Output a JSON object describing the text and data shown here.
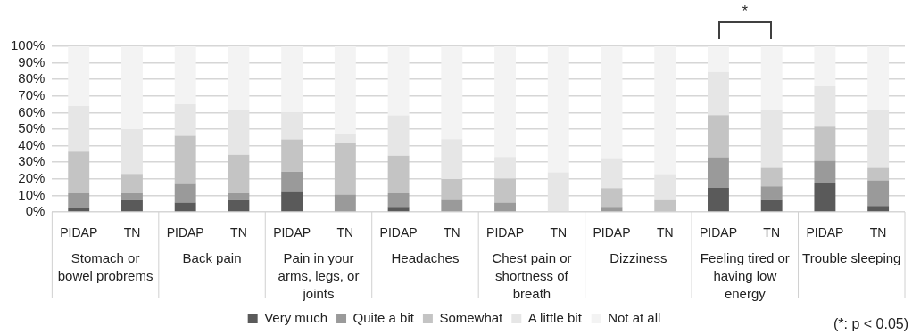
{
  "chart_data": {
    "type": "bar",
    "stacked": true,
    "categories": [
      "PIDAP",
      "TN",
      "PIDAP",
      "TN",
      "PIDAP",
      "TN",
      "PIDAP",
      "TN",
      "PIDAP",
      "TN",
      "PIDAP",
      "TN",
      "PIDAP",
      "TN",
      "PIDAP",
      "TN"
    ],
    "series": [
      {
        "name": "Very much",
        "color": "#5a5a5a",
        "values": [
          2.5,
          7.7,
          5.6,
          7.7,
          12.1,
          0,
          3.1,
          0,
          0,
          0,
          0,
          0,
          14.5,
          7.7,
          17.8,
          3.6
        ]
      },
      {
        "name": "Quite a bit",
        "color": "#9a9a9a",
        "values": [
          8.8,
          3.7,
          11.4,
          3.7,
          12.2,
          10.5,
          8.2,
          7.8,
          5.6,
          0,
          3.1,
          0,
          18.5,
          7.7,
          13.1,
          15.5
        ]
      },
      {
        "name": "Somewhat",
        "color": "#c4c4c4",
        "values": [
          25.1,
          11.6,
          29,
          23.1,
          19.5,
          31.3,
          22.7,
          12.1,
          14.5,
          0,
          11.3,
          7.7,
          25.5,
          11.2,
          20.6,
          7.5
        ]
      },
      {
        "name": "A little bit",
        "color": "#e6e6e6",
        "values": [
          27.6,
          27,
          19,
          26.9,
          16.2,
          5.4,
          24.3,
          24.1,
          13.1,
          23.9,
          18.1,
          15.2,
          26,
          35,
          24.8,
          35
        ]
      },
      {
        "name": "Not at all",
        "color": "#f3f3f3",
        "values": [
          36,
          50,
          35,
          38.6,
          40,
          52.8,
          41.7,
          56,
          66.8,
          76.1,
          67.5,
          77.1,
          15.5,
          38.4,
          23.7,
          38.4
        ]
      }
    ],
    "ylim": [
      0,
      100
    ],
    "yticks": [
      {
        "value": 0,
        "label": "0%"
      },
      {
        "value": 10,
        "label": "10%"
      },
      {
        "value": 20,
        "label": "20%"
      },
      {
        "value": 30,
        "label": "30%"
      },
      {
        "value": 40,
        "label": "40%"
      },
      {
        "value": 50,
        "label": "50%"
      },
      {
        "value": 60,
        "label": "60%"
      },
      {
        "value": 70,
        "label": "70%"
      },
      {
        "value": 80,
        "label": "80%"
      },
      {
        "value": 90,
        "label": "90%"
      },
      {
        "value": 100,
        "label": "100%"
      }
    ],
    "grid": "y",
    "legend": "bottom",
    "annotations": [
      "Stomach or bowel probrems",
      "Back pain",
      "Pain in your arms, legs, or joints",
      "Headaches",
      "Chest pain or shortness of breath",
      "Dizziness",
      "Feeling tired or having low energy",
      "Trouble sleeping",
      "*",
      "(*: p < 0.05)"
    ]
  }
}
